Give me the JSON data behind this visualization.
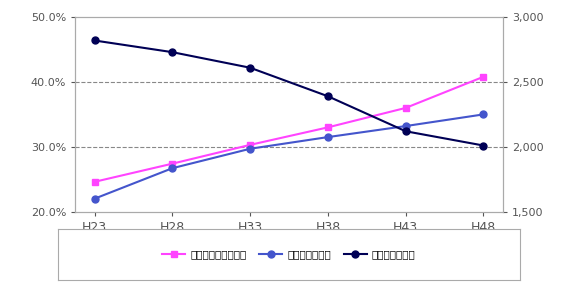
{
  "x_labels": [
    "H23",
    "H28",
    "H33",
    "H38",
    "H43",
    "H48"
  ],
  "x_values": [
    0,
    1,
    2,
    3,
    4,
    5
  ],
  "chushin_aging": [
    0.246,
    0.274,
    0.303,
    0.33,
    0.36,
    0.408
  ],
  "zenkiki_aging": [
    0.22,
    0.267,
    0.297,
    0.315,
    0.332,
    0.35
  ],
  "chushin_pop": [
    2820,
    2730,
    2610,
    2390,
    2120,
    2010
  ],
  "left_ylim": [
    0.2,
    0.5
  ],
  "right_ylim": [
    1500,
    3000
  ],
  "left_yticks": [
    0.2,
    0.3,
    0.4,
    0.5
  ],
  "left_yticklabels": [
    "20.0%",
    "30.0%",
    "40.0%",
    "50.0%"
  ],
  "right_yticks": [
    1500,
    2000,
    2500,
    3000
  ],
  "right_yticklabels": [
    "1,500",
    "2,000",
    "2,500",
    "3,000"
  ],
  "legend_labels": [
    "中心市街地高齢化率",
    "市全域高齢化率",
    "中心市街地人口"
  ],
  "color_chushin_aging": "#FF44FF",
  "color_zenkiki_aging": "#4455CC",
  "color_chushin_pop": "#000055",
  "background_color": "#FFFFFF",
  "grid_yticks": [
    0.3,
    0.4
  ],
  "spine_color": "#AAAAAA",
  "tick_color": "#555555",
  "label_fontsize": 8,
  "xtick_fontsize": 9
}
